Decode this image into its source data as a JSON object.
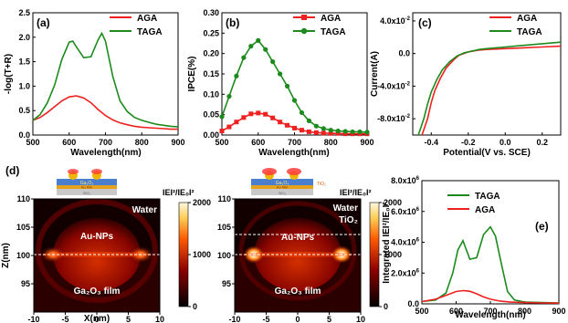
{
  "colors": {
    "aga": "#ee2020",
    "taga": "#1c8a1c",
    "axis": "#000000"
  },
  "chart_data": [
    {
      "type": "line",
      "panel_label": "(a)",
      "xlabel": "Wavelength(nm)",
      "ylabel": "-log(T+R)",
      "xlim": [
        500,
        900
      ],
      "ylim": [
        0,
        2.5
      ],
      "xticks": [
        "500",
        "600",
        "700",
        "800",
        "900"
      ],
      "yticks": [
        "0.0",
        "0.5",
        "1.0",
        "1.5",
        "2.0",
        "2.5"
      ],
      "legend_position": "top-right",
      "series": [
        {
          "name": "AGA",
          "color": "#ee2020",
          "x": [
            500,
            520,
            540,
            560,
            580,
            600,
            620,
            640,
            660,
            680,
            700,
            720,
            740,
            760,
            780,
            800,
            820,
            840,
            860,
            880,
            900
          ],
          "y": [
            0.3,
            0.36,
            0.46,
            0.58,
            0.7,
            0.78,
            0.8,
            0.76,
            0.66,
            0.52,
            0.4,
            0.31,
            0.25,
            0.21,
            0.18,
            0.16,
            0.15,
            0.14,
            0.13,
            0.12,
            0.12
          ]
        },
        {
          "name": "TAGA",
          "color": "#1c8a1c",
          "x": [
            500,
            520,
            540,
            560,
            580,
            600,
            610,
            620,
            640,
            660,
            680,
            690,
            700,
            720,
            740,
            760,
            780,
            800,
            820,
            840,
            860,
            880,
            900
          ],
          "y": [
            0.3,
            0.42,
            0.66,
            1.02,
            1.55,
            1.9,
            1.92,
            1.8,
            1.58,
            1.6,
            1.95,
            2.08,
            1.92,
            1.2,
            0.7,
            0.48,
            0.36,
            0.3,
            0.26,
            0.22,
            0.2,
            0.18,
            0.17
          ]
        }
      ]
    },
    {
      "type": "line",
      "panel_label": "(b)",
      "xlabel": "Wavelength(nm)",
      "ylabel": "IPCE(%)",
      "xlim": [
        500,
        900
      ],
      "ylim": [
        0,
        0.3
      ],
      "xticks": [
        "500",
        "600",
        "700",
        "800",
        "900"
      ],
      "yticks": [
        "0.00",
        "0.05",
        "0.10",
        "0.15",
        "0.20",
        "0.25",
        "0.30"
      ],
      "legend_position": "top-right",
      "series": [
        {
          "name": "AGA",
          "color": "#ee2020",
          "marker": "square",
          "x": [
            500,
            520,
            540,
            560,
            580,
            600,
            620,
            640,
            660,
            680,
            700,
            720,
            740,
            760,
            780,
            800,
            820,
            840,
            860,
            880,
            900
          ],
          "y": [
            0.01,
            0.02,
            0.032,
            0.043,
            0.052,
            0.054,
            0.051,
            0.042,
            0.032,
            0.024,
            0.017,
            0.012,
            0.008,
            0.006,
            0.005,
            0.004,
            0.004,
            0.003,
            0.003,
            0.003,
            0.003
          ]
        },
        {
          "name": "TAGA",
          "color": "#1c8a1c",
          "marker": "circle",
          "x": [
            500,
            520,
            540,
            560,
            580,
            600,
            620,
            640,
            660,
            680,
            700,
            720,
            740,
            760,
            780,
            800,
            820,
            840,
            860,
            880,
            900
          ],
          "y": [
            0.045,
            0.095,
            0.145,
            0.19,
            0.218,
            0.232,
            0.21,
            0.18,
            0.15,
            0.12,
            0.085,
            0.055,
            0.035,
            0.022,
            0.016,
            0.012,
            0.01,
            0.009,
            0.008,
            0.008,
            0.007
          ]
        }
      ]
    },
    {
      "type": "line",
      "panel_label": "(c)",
      "xlabel": "Potential(V vs. SCE)",
      "ylabel": "Current(A)",
      "xlim": [
        -0.5,
        0.3
      ],
      "ylim": [
        -0.1,
        0.05
      ],
      "xticks": [
        "-0.4",
        "-0.2",
        "0.0",
        "0.2"
      ],
      "xtick_values": [
        -0.4,
        -0.2,
        0.0,
        0.2
      ],
      "yticks": [
        "4.0x10",
        "0.0",
        "-4.0x10",
        "-8.0x10"
      ],
      "ytick_values": [
        0.04,
        0.0,
        -0.04,
        -0.08
      ],
      "ytick_exponent": "-2",
      "legend_position": "top-right",
      "series": [
        {
          "name": "AGA",
          "color": "#ee2020",
          "x": [
            -0.45,
            -0.42,
            -0.4,
            -0.38,
            -0.35,
            -0.32,
            -0.28,
            -0.25,
            -0.2,
            -0.15,
            -0.1,
            0.0,
            0.1,
            0.2,
            0.3
          ],
          "y": [
            -0.11,
            -0.08,
            -0.06,
            -0.045,
            -0.03,
            -0.018,
            -0.008,
            -0.002,
            0.002,
            0.004,
            0.005,
            0.006,
            0.007,
            0.008,
            0.009
          ]
        },
        {
          "name": "TAGA",
          "color": "#1c8a1c",
          "x": [
            -0.47,
            -0.44,
            -0.42,
            -0.4,
            -0.37,
            -0.34,
            -0.3,
            -0.26,
            -0.22,
            -0.18,
            -0.14,
            -0.1,
            0.0,
            0.1,
            0.2,
            0.3
          ],
          "y": [
            -0.11,
            -0.08,
            -0.062,
            -0.047,
            -0.032,
            -0.02,
            -0.01,
            -0.003,
            0.001,
            0.003,
            0.005,
            0.006,
            0.008,
            0.01,
            0.012,
            0.014
          ]
        }
      ]
    },
    {
      "type": "heatmap",
      "xlabel": "X(nm)",
      "ylabel": "Z(nm)",
      "xlim": [
        -10,
        10
      ],
      "ylim": [
        90,
        110
      ],
      "xticks": [
        "-10",
        "-5",
        "0",
        "5",
        "10"
      ],
      "yticks": [
        "95",
        "100",
        "105",
        "110"
      ],
      "colorbar_title": "IEI²/IE₀I²",
      "colorbar_ticks": [
        "0",
        "1000",
        "2000"
      ],
      "labels": [
        "Water",
        "Au-NPs",
        "Ga₂O₃ film"
      ],
      "schematic": [
        "Ga₂O₃",
        "Au film",
        "SiO₂",
        "TiO₂"
      ]
    },
    {
      "type": "heatmap",
      "xlim": [
        -10,
        10
      ],
      "ylim": [
        90,
        110
      ],
      "xticks": [
        "-10",
        "-5",
        "0",
        "5",
        "10"
      ],
      "yticks": [
        "95",
        "100",
        "105",
        "110"
      ],
      "colorbar_title": "IEI²/IE₀I²",
      "colorbar_ticks": [
        "0",
        "1000",
        "2000"
      ],
      "labels": [
        "Water",
        "TiO₂",
        "Au-NPs",
        "Ga₂O₃ film"
      ],
      "schematic": [
        "Ga₂O₃",
        "Au film",
        "SiO₂",
        "TiO₂"
      ]
    },
    {
      "type": "line",
      "panel_label": "(e)",
      "xlabel": "Wavelength(nm)",
      "ylabel": "Integrated IEI²/IE₀I²",
      "xlim": [
        500,
        900
      ],
      "ylim": [
        0,
        8000000
      ],
      "xticks": [
        "500",
        "600",
        "700",
        "800",
        "900"
      ],
      "yticks": [
        "0.0",
        "2.0x10",
        "4.0x10",
        "6.0x10",
        "8.0x10"
      ],
      "ytick_values": [
        0,
        2000000,
        4000000,
        6000000,
        8000000
      ],
      "ytick_exponent": "6",
      "legend_position": "top-right",
      "series": [
        {
          "name": "TAGA",
          "color": "#1c8a1c",
          "x": [
            500,
            540,
            570,
            590,
            605,
            620,
            640,
            660,
            680,
            700,
            715,
            730,
            750,
            770,
            800,
            850,
            900
          ],
          "y": [
            150000,
            250000,
            700000,
            2000000,
            3500000,
            4100000,
            2900000,
            3000000,
            4500000,
            5000000,
            4400000,
            2800000,
            800000,
            250000,
            120000,
            80000,
            60000
          ]
        },
        {
          "name": "AGA",
          "color": "#ee2020",
          "x": [
            500,
            540,
            570,
            600,
            620,
            640,
            660,
            680,
            700,
            730,
            760,
            800,
            850,
            900
          ],
          "y": [
            150000,
            300000,
            550000,
            800000,
            860000,
            820000,
            650000,
            450000,
            300000,
            170000,
            110000,
            80000,
            60000,
            50000
          ]
        }
      ]
    }
  ]
}
